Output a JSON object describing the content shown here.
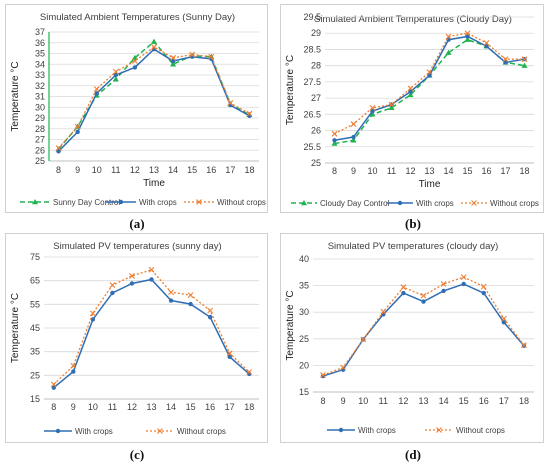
{
  "figure": {
    "captions": [
      "(a)",
      "(b)",
      "(c)",
      "(d)"
    ]
  },
  "colors": {
    "control": "#1db34e",
    "with_crops": "#2f6eb5",
    "without_crops": "#ed7d31",
    "grid": "#d9d9d9"
  },
  "chart_data": [
    {
      "type": "line",
      "title": "Simulated Ambient Temperatures (Sunny Day)",
      "xlabel": "Time",
      "ylabel": "Temperature °C",
      "categories": [
        "8",
        "9",
        "10",
        "11",
        "12",
        "13",
        "14",
        "15",
        "16",
        "17",
        "18"
      ],
      "ylim": [
        25,
        37
      ],
      "yticks": [
        25,
        26,
        27,
        28,
        29,
        30,
        31,
        32,
        33,
        34,
        35,
        36,
        37
      ],
      "grid": true,
      "legend": "bottom",
      "series": [
        {
          "name": "Sunny Day Control",
          "style": "control",
          "values": [
            26.1,
            28.2,
            31.1,
            32.6,
            34.6,
            36.1,
            34.0,
            34.8,
            34.7,
            30.3,
            29.3
          ]
        },
        {
          "name": "With crops",
          "style": "with",
          "values": [
            25.9,
            27.7,
            31.3,
            33.0,
            33.7,
            35.4,
            34.3,
            34.7,
            34.5,
            30.2,
            29.2
          ]
        },
        {
          "name": "Without crops",
          "style": "without",
          "values": [
            26.2,
            28.2,
            31.7,
            33.3,
            34.3,
            35.6,
            34.6,
            34.9,
            34.7,
            30.4,
            29.4
          ]
        }
      ]
    },
    {
      "type": "line",
      "title": "Simulated Ambient Temperatures (Cloudy Day)",
      "xlabel": "Time",
      "ylabel": "Temperature °C",
      "categories": [
        "8",
        "9",
        "10",
        "11",
        "12",
        "13",
        "14",
        "15",
        "16",
        "17",
        "18"
      ],
      "ylim": [
        25,
        29.5
      ],
      "yticks": [
        25,
        25.5,
        26,
        26.5,
        27,
        27.5,
        28,
        28.5,
        29,
        29.5
      ],
      "ytick_labels": [
        "25",
        "25.5",
        "26",
        "26.5",
        "27",
        "27.5",
        "28",
        "28.5",
        "29",
        "29.5"
      ],
      "grid": true,
      "legend": "bottom",
      "series": [
        {
          "name": "Cloudy Day Control",
          "style": "control",
          "values": [
            25.6,
            25.7,
            26.5,
            26.7,
            27.1,
            27.7,
            28.4,
            28.8,
            28.6,
            28.1,
            28.0
          ]
        },
        {
          "name": "With crops",
          "style": "with",
          "values": [
            25.7,
            25.8,
            26.6,
            26.8,
            27.2,
            27.7,
            28.8,
            28.9,
            28.6,
            28.1,
            28.2
          ]
        },
        {
          "name": "Without crops",
          "style": "without",
          "values": [
            25.9,
            26.2,
            26.7,
            26.8,
            27.3,
            27.8,
            28.9,
            29.0,
            28.7,
            28.2,
            28.2
          ]
        }
      ]
    },
    {
      "type": "line",
      "title": "Simulated PV temperatures (sunny day)",
      "xlabel": "",
      "ylabel": "Temperature °C",
      "categories": [
        "8",
        "9",
        "10",
        "11",
        "12",
        "13",
        "14",
        "15",
        "16",
        "17",
        "18"
      ],
      "ylim": [
        15,
        75
      ],
      "yticks": [
        15,
        25,
        35,
        45,
        55,
        65,
        75
      ],
      "grid": true,
      "legend": "bottom",
      "series": [
        {
          "name": "With crops",
          "style": "with",
          "values": [
            19.8,
            26.6,
            48.6,
            59.8,
            63.8,
            65.5,
            56.6,
            55.1,
            49.6,
            32.8,
            25.6
          ]
        },
        {
          "name": "Without crops",
          "style": "without",
          "values": [
            21.2,
            29.0,
            51.2,
            63.1,
            67.0,
            69.6,
            60.1,
            58.9,
            52.4,
            34.3,
            26.4
          ]
        }
      ]
    },
    {
      "type": "line",
      "title": "Simulated PV temperatures (cloudy day)",
      "xlabel": "",
      "ylabel": "Temperature °C",
      "categories": [
        "8",
        "9",
        "10",
        "11",
        "12",
        "13",
        "14",
        "15",
        "16",
        "17",
        "18"
      ],
      "ylim": [
        15,
        40
      ],
      "yticks": [
        15,
        20,
        25,
        30,
        35,
        40
      ],
      "grid": true,
      "legend": "bottom",
      "series": [
        {
          "name": "With crops",
          "style": "with",
          "values": [
            18.0,
            19.2,
            24.9,
            29.6,
            33.6,
            32.0,
            34.0,
            35.3,
            33.6,
            28.1,
            23.7
          ]
        },
        {
          "name": "Without crops",
          "style": "without",
          "values": [
            18.2,
            19.6,
            24.9,
            30.1,
            34.7,
            33.1,
            35.3,
            36.6,
            34.8,
            28.8,
            23.8
          ]
        }
      ]
    }
  ]
}
